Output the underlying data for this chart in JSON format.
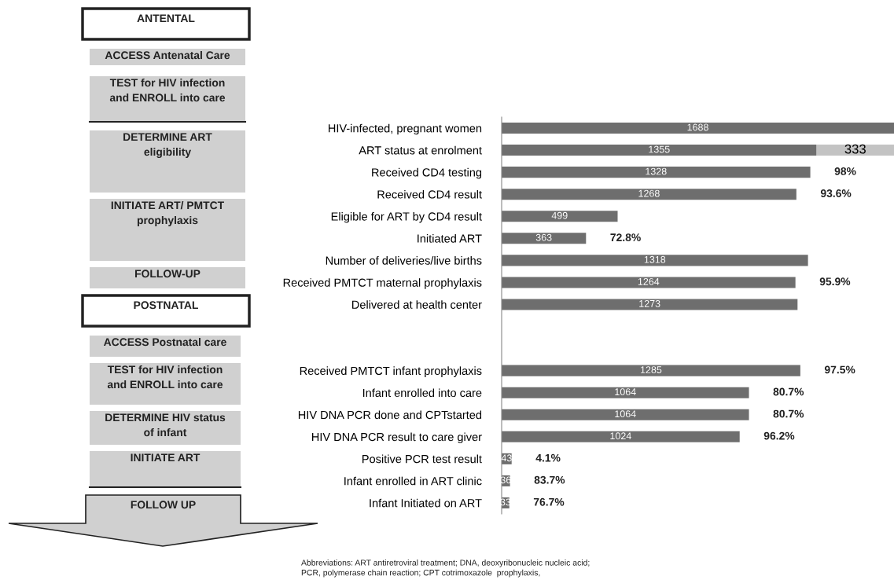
{
  "chart_data": {
    "type": "bar",
    "orientation": "horizontal",
    "stacked": true,
    "data_labels": true,
    "tick_labels": "y",
    "grid": false,
    "categories": [
      "HIV-infected, pregnant women",
      "ART status at enrolment",
      "Received CD4 testing",
      "Received CD4 result",
      "Eligible for ART by CD4 result",
      "Initiated ART",
      "Number of deliveries/live births",
      "Received PMTCT maternal prophylaxis",
      "Delivered at health center",
      null,
      null,
      "Received PMTCT infant prophylaxis",
      "Infant enrolled into care",
      "HIV DNA PCR done and CPTstarted",
      "HIV DNA PCR result to care giver",
      "Positive PCR test result",
      "Infant enrolled in ART clinic",
      "Infant Initiated on ART"
    ],
    "series": [
      {
        "color": "#6e6e6e",
        "values": [
          1688,
          1355,
          1328,
          1268,
          499,
          363,
          1318,
          1264,
          1273,
          null,
          null,
          1285,
          1064,
          1064,
          1024,
          43,
          36,
          33
        ]
      },
      {
        "color": "#c3c3c3",
        "values": [
          null,
          333,
          null,
          null,
          null,
          null,
          null,
          null,
          null,
          null,
          null,
          null,
          null,
          null,
          null,
          null,
          null,
          null
        ]
      }
    ],
    "annotations": [
      "ANTENTAL",
      "ACCESS Antenatal Care",
      "TEST for HIV infection\nand ENROLL into care",
      "DETERMINE ART\neligibility",
      "INITIATE ART/ PMTCT\nprophylaxis",
      "FOLLOW-UP",
      "POSTNATAL",
      "ACCESS Postnatal care",
      "TEST for HIV infection\nand ENROLL into care",
      "DETERMINE HIV status\nof infant",
      "INITIATE ART",
      "FOLLOW UP",
      "Abbreviations: ART antiretroviral treatment; DNA, deoxyribonucleic nucleic acid;\nPCR, polymerase chain reaction; CPT cotrimoxazole  prophylaxis,",
      {
        "text": "98%",
        "x": 1328,
        "y": "Received CD4 testing"
      },
      {
        "text": "93.6%",
        "x": 1268,
        "y": "Received CD4 result"
      },
      {
        "text": "72.8%",
        "x": 363,
        "y": "Initiated ART"
      },
      {
        "text": "95.9%",
        "x": 1264,
        "y": "Received PMTCT maternal prophylaxis"
      },
      {
        "text": "97.5%",
        "x": 1285,
        "y": "Received PMTCT infant prophylaxis"
      },
      {
        "text": "80.7%",
        "x": 1064,
        "y": "Infant enrolled into care"
      },
      {
        "text": "80.7%",
        "x": 1064,
        "y": "HIV DNA PCR done and CPTstarted"
      },
      {
        "text": "96.2%",
        "x": 1024,
        "y": "HIV DNA PCR result to care giver"
      },
      {
        "text": "4.1%",
        "x": 43,
        "y": "Positive PCR test result"
      },
      {
        "text": "83.7%",
        "x": 36,
        "y": "Infant enrolled in ART clinic"
      },
      {
        "text": "76.7%",
        "x": 33,
        "y": "Infant Initiated on ART"
      }
    ]
  }
}
